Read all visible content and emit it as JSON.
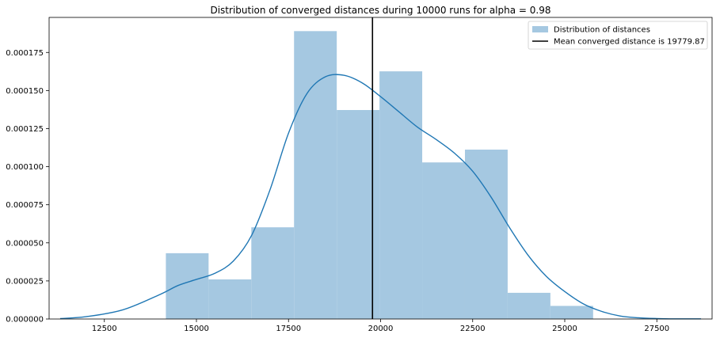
{
  "chart_data": {
    "type": "bar",
    "title": "Distribution of converged distances during 10000 runs for alpha = 0.98",
    "xlabel": "",
    "ylabel": "",
    "xlim": [
      11000,
      29000
    ],
    "ylim": [
      0,
      0.000198
    ],
    "x_ticks": [
      12500,
      15000,
      17500,
      20000,
      22500,
      25000,
      27500
    ],
    "x_tick_labels": [
      "12500",
      "15000",
      "17500",
      "20000",
      "22500",
      "25000",
      "27500"
    ],
    "y_ticks": [
      0,
      2.5e-05,
      5e-05,
      7.5e-05,
      0.0001,
      0.000125,
      0.00015,
      0.000175
    ],
    "y_tick_labels": [
      "0.000000",
      "0.000025",
      "0.000050",
      "0.000075",
      "0.000100",
      "0.000125",
      "0.000150",
      "0.000175"
    ],
    "grid": false,
    "legend_position": "top-right",
    "histogram": {
      "name": "Distribution of distances",
      "color": "#a5c8e1",
      "bin_edges": [
        14170,
        15330,
        16490,
        17650,
        18810,
        19970,
        21130,
        22290,
        23450,
        24610,
        25770
      ],
      "values": [
        4.32e-05,
        2.6e-05,
        6.02e-05,
        0.000189,
        0.0001372,
        0.0001626,
        0.0001028,
        0.0001112,
        1.72e-05,
        8.6e-06
      ]
    },
    "kde": {
      "color": "#1f77b4",
      "x": [
        11300,
        12000,
        13000,
        14000,
        14500,
        15000,
        15500,
        16000,
        16500,
        17000,
        17500,
        18000,
        18500,
        19000,
        19500,
        20000,
        20500,
        21000,
        21500,
        22000,
        22500,
        23000,
        23500,
        24000,
        24500,
        25000,
        25500,
        26000,
        26500,
        27000,
        27500,
        28000,
        28700
      ],
      "y": [
        3e-07,
        1.5e-06,
        6e-06,
        1.6e-05,
        2.2e-05,
        2.6e-05,
        3e-05,
        3.8e-05,
        5.5e-05,
        8.5e-05,
        0.000122,
        0.000148,
        0.000159,
        0.00016,
        0.000155,
        0.000146,
        0.000136,
        0.000126,
        0.000118,
        0.000109,
        9.7e-05,
        8e-05,
        6e-05,
        4.2e-05,
        2.8e-05,
        1.8e-05,
        1e-05,
        5e-06,
        2e-06,
        8e-07,
        3e-07,
        1e-07,
        1e-07
      ]
    },
    "mean_line": {
      "x": 19779.87,
      "color": "#000000"
    },
    "legend": [
      {
        "label": "Distribution of distances",
        "kind": "patch",
        "color": "#a5c8e1"
      },
      {
        "label": "Mean converged distance is 19779.87",
        "kind": "line",
        "color": "#000000"
      }
    ]
  }
}
